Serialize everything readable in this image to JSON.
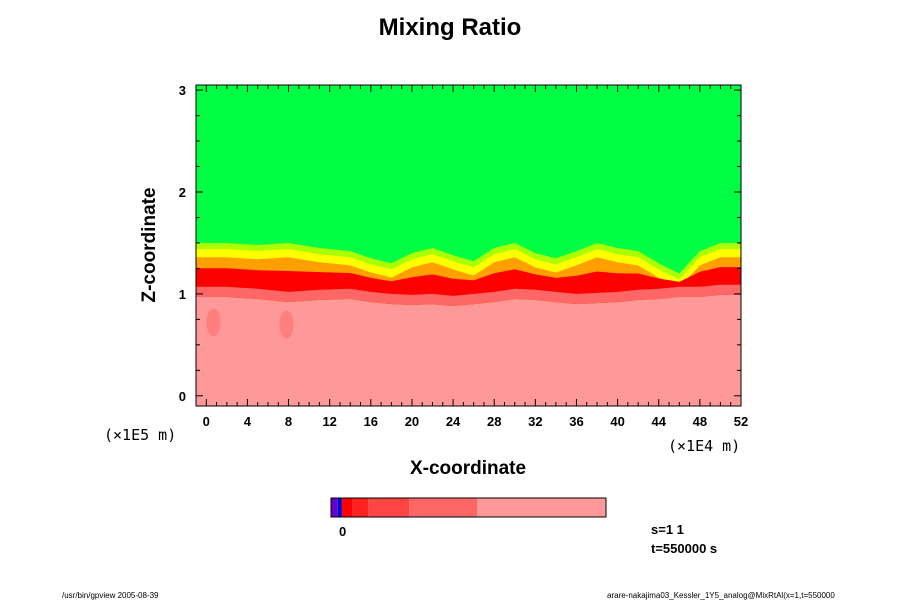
{
  "chart_data": {
    "type": "heatmap",
    "title": "Mixing Ratio",
    "xlabel": "X-coordinate",
    "ylabel": "Z-coordinate",
    "x_unit": "(×1E4 m)",
    "y_unit": "(×1E5 m)",
    "xlim": [
      -1,
      52
    ],
    "ylim": [
      -0.1,
      3.05
    ],
    "x_ticks": [
      0,
      4,
      8,
      12,
      16,
      20,
      24,
      28,
      32,
      36,
      40,
      44,
      48,
      52
    ],
    "y_ticks": [
      0,
      1,
      2,
      3
    ],
    "interface_profile": {
      "x": [
        -1,
        2,
        5,
        8,
        11,
        14,
        16,
        18,
        20,
        22,
        24,
        26,
        28,
        30,
        32,
        34,
        36,
        38,
        40,
        42,
        44,
        46,
        48,
        50,
        52
      ],
      "z_top_green": [
        1.5,
        1.5,
        1.48,
        1.5,
        1.45,
        1.42,
        1.35,
        1.3,
        1.4,
        1.45,
        1.38,
        1.32,
        1.45,
        1.5,
        1.4,
        1.35,
        1.42,
        1.5,
        1.45,
        1.42,
        1.3,
        1.2,
        1.42,
        1.5,
        1.5
      ],
      "z_red_base": [
        1.05,
        1.05,
        1.03,
        1.0,
        1.02,
        1.03,
        1.0,
        0.98,
        0.97,
        0.98,
        0.96,
        0.98,
        1.0,
        1.03,
        1.02,
        1.0,
        0.98,
        0.99,
        1.0,
        1.02,
        1.03,
        1.05,
        1.05,
        1.07,
        1.07
      ]
    },
    "colors": {
      "green": "#00ff44",
      "lightgreen": "#aaff00",
      "yellow": "#ffff00",
      "orange": "#ffa000",
      "red": "#ff0000",
      "salmon": "#ff6666",
      "pink": "#ff9999"
    },
    "colorbar": {
      "segments": [
        {
          "color": "#6600cc",
          "width": 1
        },
        {
          "color": "#0000cc",
          "width": 0.6
        },
        {
          "color": "#ff0000",
          "width": 1.6
        },
        {
          "color": "#ff2222",
          "width": 2.3
        },
        {
          "color": "#ff4444",
          "width": 6
        },
        {
          "color": "#ff6666",
          "width": 10
        },
        {
          "color": "#ff9999",
          "width": 19
        }
      ],
      "label": "0"
    }
  },
  "annotations": {
    "s": "s=1 1",
    "t": "t=550000 s",
    "footer_left": "/usr/bin/gpview 2005-08-39",
    "footer_right": "arare-nakajima03_Kessler_1Y5_analog@MixRtAl(x=1,t=550000"
  }
}
